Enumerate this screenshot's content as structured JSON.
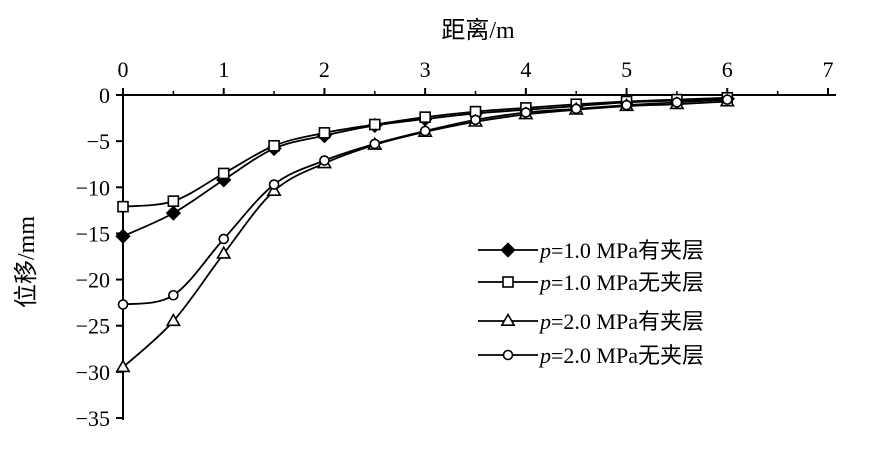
{
  "chart_data": {
    "type": "line",
    "title": "",
    "xlabel": "距离/m",
    "ylabel": "位移/mm",
    "xlim": [
      0,
      7
    ],
    "ylim": [
      -35,
      0
    ],
    "x_ticks": [
      "0",
      "1",
      "2",
      "3",
      "4",
      "5",
      "6",
      "7"
    ],
    "y_ticks": [
      "0",
      "-5",
      "-10",
      "-15",
      "-20",
      "-25",
      "-30",
      "-35"
    ],
    "x_axis_position": "top",
    "grid": false,
    "legend_position": "lower-right",
    "series": [
      {
        "name": "p=1.0 MPa有夹层",
        "marker": "filled-diamond",
        "x": [
          0,
          0.5,
          1,
          1.5,
          2,
          2.5,
          3,
          3.5,
          4,
          4.5,
          5,
          5.5,
          6
        ],
        "y": [
          -15.3,
          -12.8,
          -9.2,
          -5.8,
          -4.4,
          -3.3,
          -2.6,
          -2.0,
          -1.6,
          -1.2,
          -0.8,
          -0.6,
          -0.4
        ]
      },
      {
        "name": "p=1.0 MPa无夹层",
        "marker": "open-square",
        "x": [
          0,
          0.5,
          1,
          1.5,
          2,
          2.5,
          3,
          3.5,
          4,
          4.5,
          5,
          5.5,
          6
        ],
        "y": [
          -12.1,
          -11.5,
          -8.5,
          -5.5,
          -4.1,
          -3.2,
          -2.4,
          -1.8,
          -1.4,
          -1.0,
          -0.7,
          -0.5,
          -0.3
        ]
      },
      {
        "name": "p=2.0 MPa有夹层",
        "marker": "open-triangle",
        "x": [
          0,
          0.5,
          1,
          1.5,
          2,
          2.5,
          3,
          3.5,
          4,
          4.5,
          5,
          5.5,
          6
        ],
        "y": [
          -29.5,
          -24.5,
          -17.2,
          -10.4,
          -7.4,
          -5.4,
          -4.0,
          -2.9,
          -2.1,
          -1.6,
          -1.2,
          -1.0,
          -0.7
        ]
      },
      {
        "name": "p=2.0 MPa无夹层",
        "marker": "open-circle",
        "x": [
          0,
          0.5,
          1,
          1.5,
          2,
          2.5,
          3,
          3.5,
          4,
          4.5,
          5,
          5.5,
          6
        ],
        "y": [
          -22.7,
          -21.7,
          -15.6,
          -9.7,
          -7.1,
          -5.3,
          -3.9,
          -2.7,
          -1.9,
          -1.5,
          -1.1,
          -0.8,
          -0.5
        ]
      }
    ],
    "legend_entries": [
      {
        "italic": "p",
        "rest": "=1.0 MPa有夹层"
      },
      {
        "italic": "p",
        "rest": "=1.0 MPa无夹层"
      },
      {
        "italic": "p",
        "rest": "=2.0 MPa有夹层"
      },
      {
        "italic": "p",
        "rest": "=2.0 MPa无夹层"
      }
    ]
  }
}
